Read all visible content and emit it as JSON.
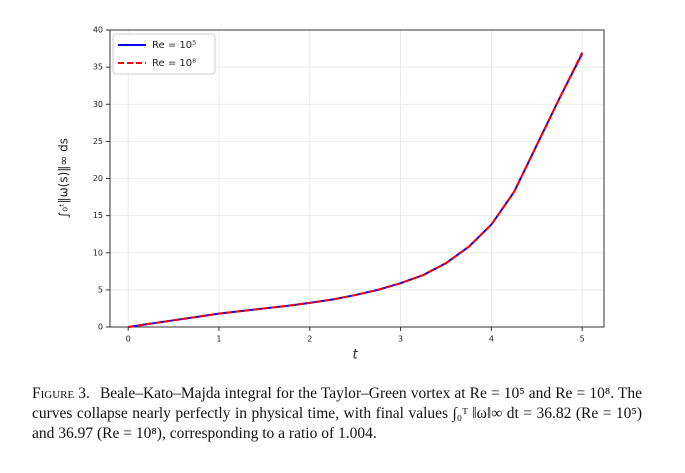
{
  "chart_data": {
    "type": "line",
    "ylabel": "∫₀ᵗ‖ω(s)‖∞ ds",
    "xlabel": "t",
    "x": [
      0,
      0.25,
      0.5,
      0.75,
      1,
      1.25,
      1.5,
      1.75,
      2,
      2.25,
      2.5,
      2.75,
      3,
      3.25,
      3.5,
      3.75,
      4,
      4.25,
      4.5,
      4.75,
      5
    ],
    "series": [
      {
        "name": "Re = 10⁵",
        "color": "#0000ff",
        "dash": false,
        "values": [
          0,
          0.45,
          0.9,
          1.35,
          1.8,
          2.15,
          2.5,
          2.85,
          3.25,
          3.7,
          4.3,
          5.0,
          5.9,
          7.0,
          8.6,
          10.8,
          13.8,
          18.2,
          24.5,
          30.8,
          36.82
        ]
      },
      {
        "name": "Re = 10⁸",
        "color": "#ff0000",
        "dash": true,
        "values": [
          0,
          0.45,
          0.9,
          1.35,
          1.8,
          2.15,
          2.5,
          2.85,
          3.25,
          3.7,
          4.3,
          5.0,
          5.9,
          7.0,
          8.6,
          10.8,
          13.8,
          18.2,
          24.5,
          30.8,
          36.97
        ]
      }
    ],
    "xlim": [
      -0.2,
      5.24
    ],
    "xticks": [
      0,
      1,
      2,
      3,
      4,
      5
    ],
    "ylim": [
      0,
      40
    ],
    "yticks": [
      0,
      5,
      10,
      15,
      20,
      25,
      30,
      35,
      40
    ],
    "grid": true,
    "legend": "upper left"
  },
  "caption": {
    "label": "Figure 3.",
    "text": "Beale–Kato–Majda integral for the Taylor–Green vortex at Re = 10⁵ and Re = 10⁸. The curves collapse nearly perfectly in physical time, with final values ∫₀ᵀ ‖ω‖∞ dt = 36.82 (Re = 10⁵) and 36.97 (Re = 10⁸), corresponding to a ratio of 1.004."
  }
}
